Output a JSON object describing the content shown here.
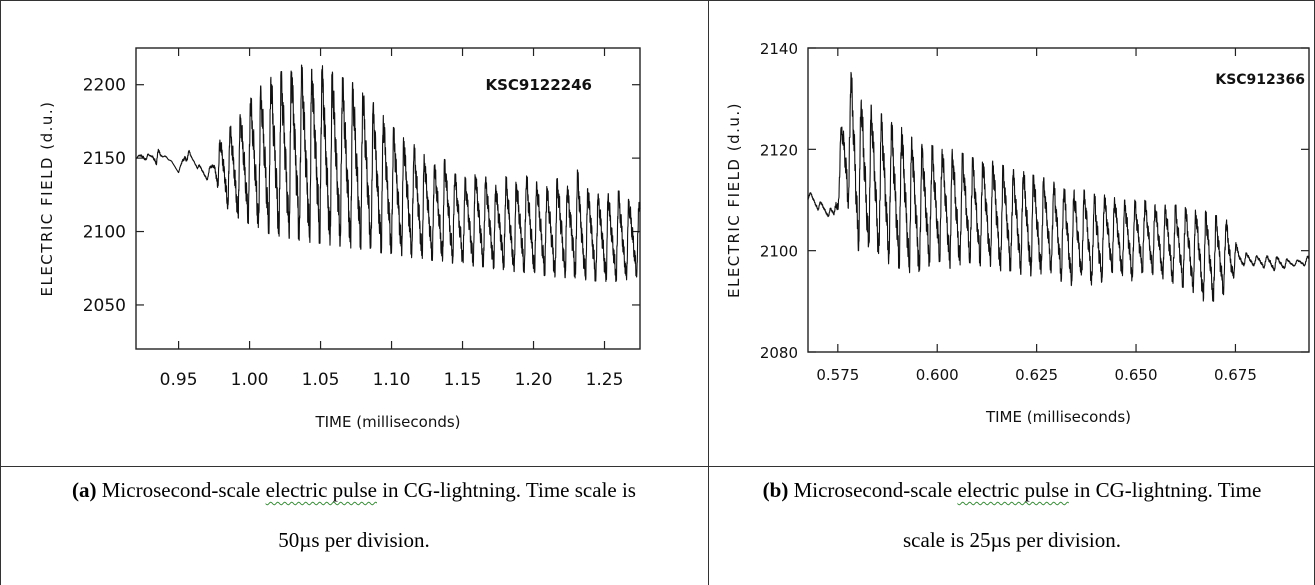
{
  "chart_data": [
    {
      "type": "line",
      "id": "a",
      "annotation": "KSC9122246",
      "xlabel": "TIME  (milliseconds)",
      "ylabel": "ELECTRIC  FIELD  (d.u.)",
      "xlim": [
        0.92,
        1.275
      ],
      "ylim": [
        2020,
        2225
      ],
      "xticks": [
        0.95,
        1.0,
        1.05,
        1.1,
        1.15,
        1.2,
        1.25
      ],
      "xtick_labels": [
        "0.95",
        "1.00",
        "1.05",
        "1.10",
        "1.15",
        "1.20",
        "1.25"
      ],
      "yticks": [
        2050,
        2100,
        2150,
        2200
      ],
      "ytick_labels": [
        "2050",
        "2100",
        "2150",
        "2200"
      ],
      "series": [
        {
          "values_description_free": true,
          "x": [
            0.92,
            0.925,
            0.93,
            0.935,
            0.94,
            0.945,
            0.95,
            0.955,
            0.96,
            0.965,
            0.97,
            0.975,
            0.98,
            0.985,
            0.99,
            0.995,
            1.0,
            1.005,
            1.01,
            1.015,
            1.02,
            1.025,
            1.03,
            1.035,
            1.04,
            1.045,
            1.05,
            1.055,
            1.06,
            1.065,
            1.07,
            1.075,
            1.08,
            1.085,
            1.09,
            1.095,
            1.1,
            1.105,
            1.11,
            1.115,
            1.12,
            1.125,
            1.13,
            1.135,
            1.14,
            1.145,
            1.15,
            1.155,
            1.16,
            1.165,
            1.17,
            1.175,
            1.18,
            1.185,
            1.19,
            1.195,
            1.2,
            1.205,
            1.21,
            1.215,
            1.22,
            1.225,
            1.23,
            1.235,
            1.24,
            1.245,
            1.25,
            1.255,
            1.26,
            1.265,
            1.27,
            1.275
          ],
          "y_upper": [
            2150,
            2155,
            2152,
            2157,
            2150,
            2148,
            2140,
            2160,
            2150,
            2145,
            2140,
            2150,
            2165,
            2170,
            2175,
            2182,
            2190,
            2198,
            2200,
            2205,
            2208,
            2210,
            2212,
            2214,
            2212,
            2210,
            2214,
            2210,
            2208,
            2205,
            2203,
            2200,
            2196,
            2190,
            2185,
            2178,
            2172,
            2168,
            2162,
            2160,
            2156,
            2150,
            2145,
            2150,
            2148,
            2140,
            2138,
            2135,
            2140,
            2138,
            2135,
            2130,
            2138,
            2132,
            2135,
            2138,
            2133,
            2135,
            2130,
            2135,
            2138,
            2130,
            2145,
            2128,
            2130,
            2125,
            2130,
            2122,
            2128,
            2120,
            2125,
            2120
          ],
          "y_lower": [
            2150,
            2148,
            2150,
            2145,
            2152,
            2148,
            2140,
            2148,
            2148,
            2140,
            2135,
            2140,
            2120,
            2115,
            2110,
            2108,
            2105,
            2102,
            2100,
            2098,
            2097,
            2096,
            2095,
            2094,
            2093,
            2092,
            2092,
            2091,
            2090,
            2090,
            2089,
            2088,
            2088,
            2087,
            2086,
            2085,
            2085,
            2084,
            2083,
            2082,
            2082,
            2081,
            2080,
            2080,
            2079,
            2078,
            2078,
            2077,
            2076,
            2076,
            2075,
            2074,
            2074,
            2073,
            2072,
            2072,
            2071,
            2070,
            2070,
            2069,
            2069,
            2068,
            2068,
            2067,
            2067,
            2066,
            2066,
            2066,
            2066,
            2067,
            2068,
            2070
          ]
        }
      ]
    },
    {
      "type": "line",
      "id": "b",
      "annotation": "KSC912366",
      "xlabel": "TIME  (milliseconds)",
      "ylabel": "ELECTRIC  FIELD  (d.u.)",
      "xlim": [
        0.5675,
        0.6935
      ],
      "ylim": [
        2080,
        2140
      ],
      "xticks": [
        0.575,
        0.6,
        0.625,
        0.65,
        0.675
      ],
      "xtick_labels": [
        "0.575",
        "0.600",
        "0.625",
        "0.650",
        "0.675"
      ],
      "yticks": [
        2080,
        2100,
        2120,
        2140
      ],
      "ytick_labels": [
        "2080",
        "2100",
        "2120",
        "2140"
      ],
      "series": [
        {
          "x": [
            0.5675,
            0.57,
            0.572,
            0.574,
            0.576,
            0.578,
            0.58,
            0.583,
            0.586,
            0.589,
            0.592,
            0.595,
            0.598,
            0.601,
            0.604,
            0.607,
            0.61,
            0.613,
            0.616,
            0.619,
            0.622,
            0.625,
            0.628,
            0.631,
            0.634,
            0.637,
            0.64,
            0.643,
            0.646,
            0.649,
            0.652,
            0.655,
            0.658,
            0.661,
            0.664,
            0.667,
            0.67,
            0.673,
            0.676,
            0.68,
            0.685,
            0.69,
            0.6935
          ],
          "y_upper": [
            2112,
            2110,
            2109,
            2108,
            2126,
            2136,
            2131,
            2129,
            2127,
            2125,
            2124,
            2121,
            2121,
            2120,
            2120,
            2119,
            2118,
            2118,
            2117,
            2116,
            2116,
            2115,
            2114,
            2113,
            2112,
            2112,
            2111,
            2111,
            2110,
            2110,
            2110,
            2109,
            2109,
            2109,
            2108,
            2108,
            2107,
            2106,
            2100,
            2099,
            2099,
            2098,
            2099
          ],
          "y_lower": [
            2110,
            2108,
            2107,
            2106,
            2110,
            2108,
            2100,
            2100,
            2098,
            2097,
            2096,
            2095,
            2097,
            2098,
            2096,
            2098,
            2097,
            2097,
            2096,
            2096,
            2095,
            2095,
            2096,
            2094,
            2093,
            2095,
            2092,
            2096,
            2095,
            2094,
            2096,
            2095,
            2094,
            2093,
            2092,
            2090,
            2090,
            2092,
            2097,
            2097,
            2096,
            2097,
            2097
          ]
        }
      ]
    }
  ],
  "captions": {
    "a": {
      "prefix": "(a)",
      "text_before": " Microsecond-scale ",
      "wavy": "electric  pulse",
      "text_after": " in CG-lightning. Time scale is",
      "line2": "50µs per division."
    },
    "b": {
      "prefix": "(b)",
      "text_before": " Microsecond-scale ",
      "wavy": "electric  pulse",
      "text_after": " in CG-lightning. Time",
      "line2": "scale is 25µs per division."
    }
  },
  "colors": {
    "trace": "#111111",
    "frame": "#222222",
    "squiggle": "#3a8a3a"
  }
}
